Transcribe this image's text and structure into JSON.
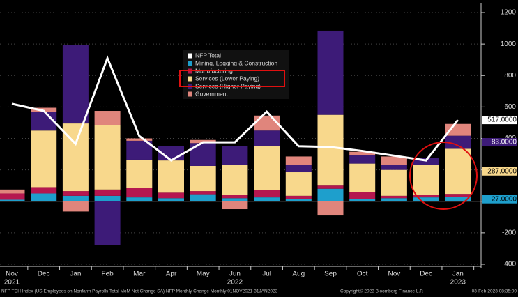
{
  "chart_data": {
    "type": "bar",
    "categories": [
      "Nov",
      "Dec",
      "Jan",
      "Feb",
      "Mar",
      "Apr",
      "May",
      "Jun",
      "Jul",
      "Aug",
      "Sep",
      "Oct",
      "Nov",
      "Dec",
      "Jan"
    ],
    "year_labels": [
      "2021",
      null,
      null,
      null,
      null,
      null,
      null,
      "2022",
      null,
      null,
      null,
      null,
      null,
      null,
      "2023"
    ],
    "series": [
      {
        "name": "NFP Total",
        "type": "line",
        "color": "#ffffff",
        "values": [
          620,
          575,
          365,
          910,
          415,
          260,
          375,
          375,
          570,
          350,
          345,
          320,
          290,
          260,
          517
        ],
        "value_labels": [
          null,
          null,
          null,
          null,
          null,
          null,
          null,
          null,
          null,
          null,
          null,
          null,
          null,
          null,
          "517.0000"
        ]
      },
      {
        "name": "Mining, Logging & Construction",
        "color": "#1e9fcc",
        "values": [
          10,
          50,
          35,
          35,
          25,
          20,
          45,
          20,
          25,
          15,
          80,
          15,
          20,
          25,
          27
        ],
        "value_labels": [
          null,
          null,
          null,
          null,
          null,
          null,
          null,
          null,
          null,
          null,
          null,
          null,
          null,
          null,
          "27.0000"
        ]
      },
      {
        "name": "Manufacturing",
        "color": "#b5174f",
        "values": [
          40,
          40,
          30,
          40,
          60,
          35,
          20,
          20,
          45,
          20,
          20,
          45,
          15,
          15,
          20
        ]
      },
      {
        "name": "Services (Lower Paying)",
        "color": "#f8d88c",
        "values": [
          0,
          360,
          430,
          410,
          180,
          205,
          160,
          190,
          280,
          150,
          450,
          180,
          165,
          190,
          287
        ],
        "value_labels": [
          null,
          null,
          null,
          null,
          null,
          null,
          null,
          null,
          null,
          null,
          null,
          null,
          null,
          null,
          "287.0000"
        ]
      },
      {
        "name": "Services (Higher Paying)",
        "color": "#3d1b78",
        "values": [
          0,
          120,
          500,
          -280,
          120,
          90,
          145,
          120,
          100,
          45,
          535,
          55,
          30,
          45,
          83
        ],
        "value_labels": [
          null,
          null,
          null,
          null,
          null,
          null,
          null,
          null,
          null,
          null,
          null,
          null,
          null,
          null,
          "83.0000"
        ]
      },
      {
        "name": "Government",
        "color": "#e0857c",
        "values": [
          25,
          25,
          -65,
          90,
          15,
          0,
          20,
          -50,
          95,
          55,
          -90,
          20,
          55,
          0,
          75
        ]
      }
    ],
    "ylim": [
      -400,
      1200
    ],
    "yticks": [
      -400,
      -200,
      0,
      200,
      400,
      600,
      800,
      1000,
      1200
    ],
    "grid": true,
    "footer_left": "NFP TCH Index (US Employees on Nonfarm Payrolls Total MoM Net Change SA) NFP Monthly Change  Monthly 01NOV2021-31JAN2023",
    "footer_mid": "Copyright© 2023 Bloomberg Finance L.P.",
    "footer_right": "03-Feb-2023 08:35:00"
  }
}
